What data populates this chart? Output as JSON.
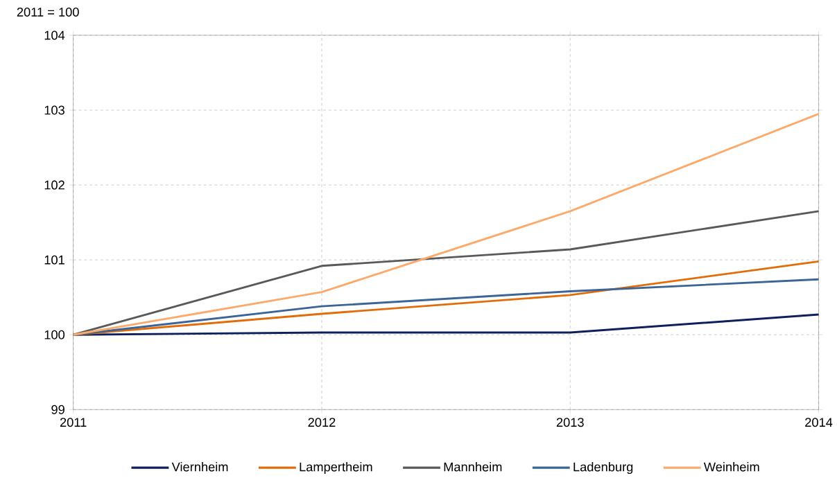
{
  "chart_data": {
    "type": "line",
    "ylabel": "2011 = 100",
    "x": [
      2011,
      2012,
      2013,
      2014
    ],
    "xlim": [
      2011,
      2014
    ],
    "xticks": [
      2011,
      2012,
      2013,
      2014
    ],
    "ylim": [
      99,
      104
    ],
    "yticks": [
      99,
      100,
      101,
      102,
      103,
      104
    ],
    "grid": true,
    "legend": "bottom",
    "line_style": "solid",
    "marker": "none",
    "series": [
      {
        "name": "Viernheim",
        "color": "#0d1f5c",
        "values": [
          100,
          100.03,
          100.03,
          100.27
        ]
      },
      {
        "name": "Lampertheim",
        "color": "#e36c0a",
        "values": [
          100,
          100.28,
          100.53,
          100.98
        ]
      },
      {
        "name": "Mannheim",
        "color": "#595959",
        "values": [
          100,
          100.92,
          101.14,
          101.65
        ]
      },
      {
        "name": "Ladenburg",
        "color": "#3c6496",
        "values": [
          100,
          100.38,
          100.58,
          100.74
        ]
      },
      {
        "name": "Weinheim",
        "color": "#fbaa6c",
        "values": [
          100,
          100.57,
          101.65,
          102.95
        ]
      }
    ]
  }
}
